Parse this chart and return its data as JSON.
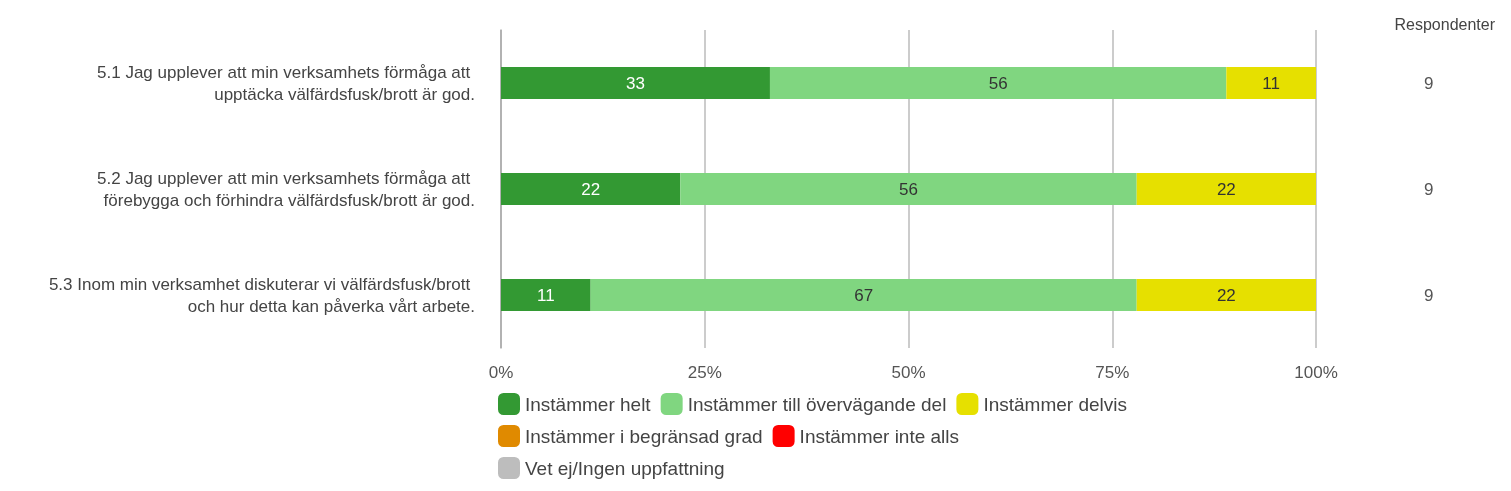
{
  "chart_data": {
    "type": "bar",
    "orientation": "horizontal",
    "stacked": true,
    "data_labels": true,
    "grid": "x",
    "legend": "bottom left",
    "categories": [
      "5.1 Jag upplever att min verksamhets förmåga att upptäcka välfärdsfusk/brott är god.",
      "5.2 Jag upplever att min verksamhets förmåga att förebygga och förhindra välfärdsfusk/brott är god.",
      "5.3 Inom min verksamhet diskuterar vi välfärdsfusk/brott och hur detta kan påverka vårt arbete."
    ],
    "y2label": "Respondenter",
    "y2_categories": [
      "9",
      "9",
      "9"
    ],
    "xlim": [
      0,
      100
    ],
    "xticks": [
      {
        "value": 0,
        "label": "0%"
      },
      {
        "value": 25,
        "label": "25%"
      },
      {
        "value": 50,
        "label": "50%"
      },
      {
        "value": 75,
        "label": "75%"
      },
      {
        "value": 100,
        "label": "100%"
      }
    ],
    "series": [
      {
        "name": "Instämmer helt",
        "color": "#339933",
        "values": [
          33,
          22,
          11
        ]
      },
      {
        "name": "Instämmer till övervägande del",
        "color": "#80d680",
        "values": [
          56,
          56,
          67
        ]
      },
      {
        "name": "Instämmer delvis",
        "color": "#e6e000",
        "values": [
          11,
          22,
          22
        ]
      },
      {
        "name": "Instämmer i begränsad grad",
        "color": "#e08a00",
        "values": [
          null,
          null,
          null
        ]
      },
      {
        "name": "Instämmer inte alls",
        "color": "#ff0000",
        "values": [
          null,
          null,
          null
        ]
      },
      {
        "name": "Vet ej/Ingen uppfattning",
        "color": "#bdbdbd",
        "values": [
          null,
          null,
          null
        ]
      }
    ]
  }
}
